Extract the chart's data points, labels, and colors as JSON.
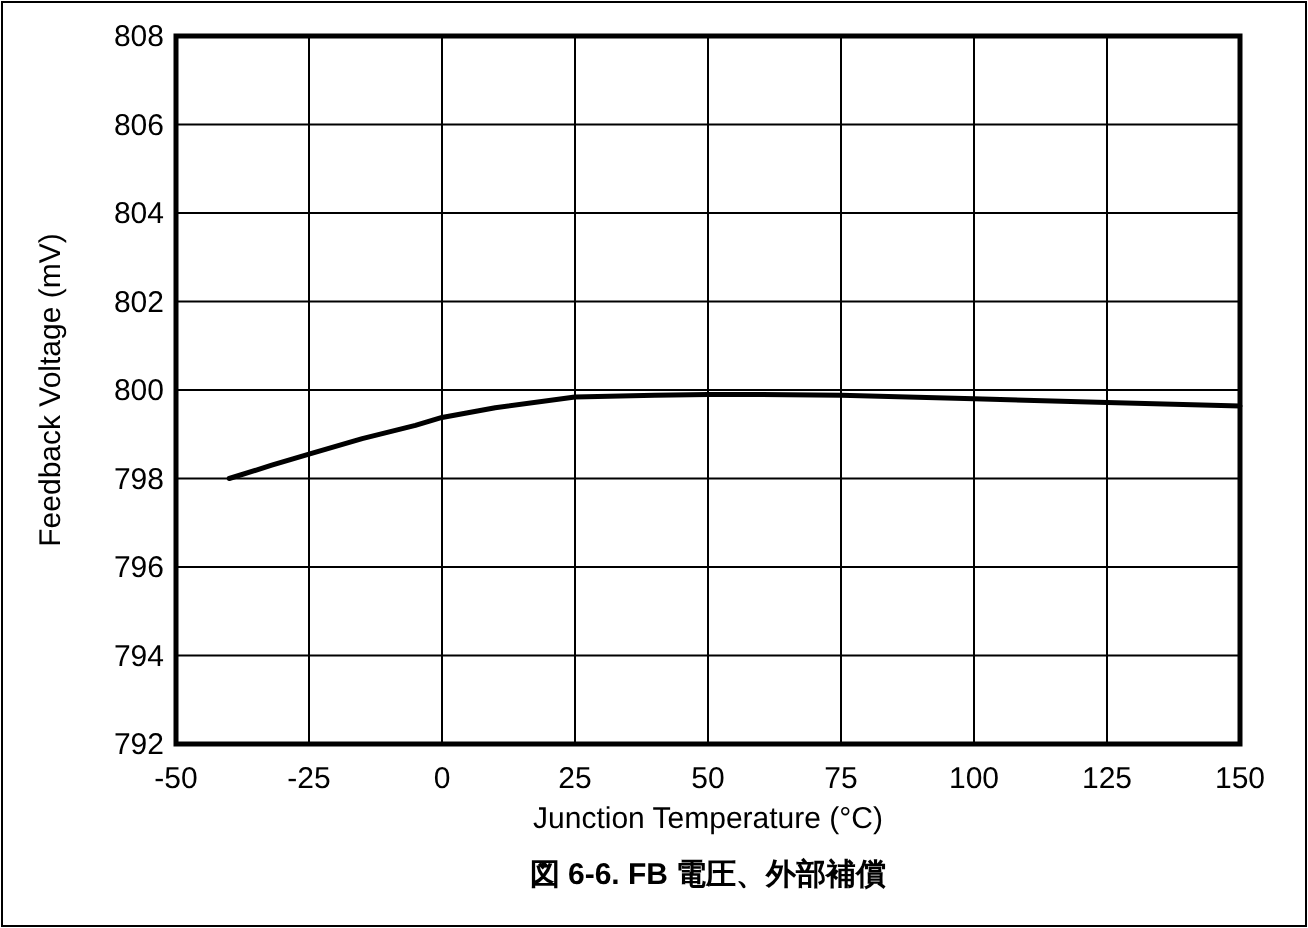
{
  "chart_data": {
    "type": "line",
    "title": "図 6-6. FB 電圧、外部補償",
    "xlabel": "Junction Temperature (°C)",
    "ylabel": "Feedback Voltage (mV)",
    "x": [
      -40,
      -32,
      -25,
      -15,
      -5,
      0,
      10,
      25,
      40,
      50,
      60,
      75,
      100,
      125,
      150
    ],
    "series": [
      {
        "color": "#000000",
        "values": [
          798.0,
          798.3,
          798.55,
          798.9,
          799.2,
          799.38,
          799.6,
          799.84,
          799.88,
          799.9,
          799.9,
          799.88,
          799.8,
          799.72,
          799.64
        ]
      }
    ],
    "xlim": [
      -50,
      150
    ],
    "xticks": [
      -50,
      -25,
      0,
      25,
      50,
      75,
      100,
      125,
      150
    ],
    "ylim": [
      792,
      808
    ],
    "yticks": [
      792,
      794,
      796,
      798,
      800,
      802,
      804,
      806,
      808
    ],
    "grid": true,
    "marker": "none",
    "line_style": "solid"
  }
}
